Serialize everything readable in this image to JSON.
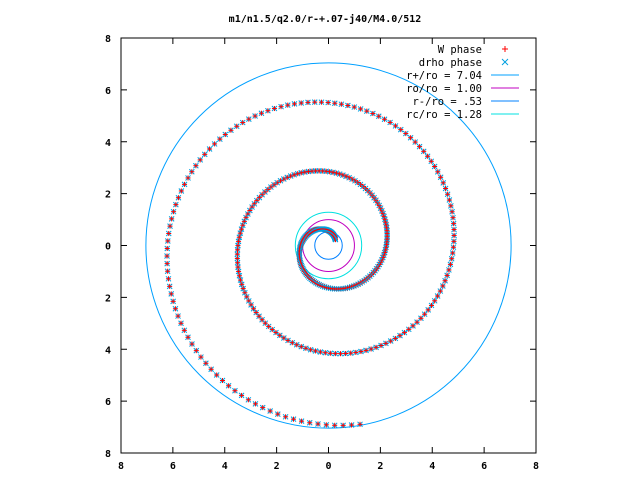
{
  "chart_data": {
    "type": "scatter",
    "title": "m1/n1.5/q2.0/r-+.07-j40/M4.0/512",
    "xlabel": "",
    "ylabel": "",
    "xlim": [
      -8,
      8
    ],
    "ylim": [
      -8,
      8
    ],
    "xtick_values": [
      -8,
      -6,
      -4,
      -2,
      0,
      2,
      4,
      6,
      8
    ],
    "ytick_values": [
      -8,
      -6,
      -4,
      -2,
      0,
      2,
      4,
      6,
      8
    ],
    "xtick_labels": [
      "8",
      "6",
      "4",
      "2",
      "0",
      "2",
      "4",
      "6",
      "8"
    ],
    "ytick_labels": [
      "8",
      "6",
      "4",
      "2",
      "0",
      "2",
      "4",
      "6",
      "8"
    ],
    "grid": false,
    "legend_position": "top-right",
    "series": [
      {
        "name": "W phase",
        "kind": "marker",
        "marker": "plus",
        "color": "#ff0000"
      },
      {
        "name": "drho phase",
        "kind": "marker",
        "marker": "cross",
        "color": "#00a0e0"
      },
      {
        "name": "r+/ro = 7.04",
        "kind": "circle",
        "radius": 7.04,
        "color": "#00a0ff"
      },
      {
        "name": "ro/ro = 1.00",
        "kind": "circle",
        "radius": 1.0,
        "color": "#c000c0"
      },
      {
        "name": "r-/ro = .53",
        "kind": "circle",
        "radius": 0.53,
        "color": "#0080ff"
      },
      {
        "name": "rc/ro = 1.28",
        "kind": "circle",
        "radius": 1.28,
        "color": "#00e0e0"
      }
    ],
    "spiral": {
      "description_free": true,
      "r_inner": 0.35,
      "r_outer": 7.0,
      "theta_start_deg": 40,
      "theta_end_deg": 1000,
      "points": 360
    }
  }
}
